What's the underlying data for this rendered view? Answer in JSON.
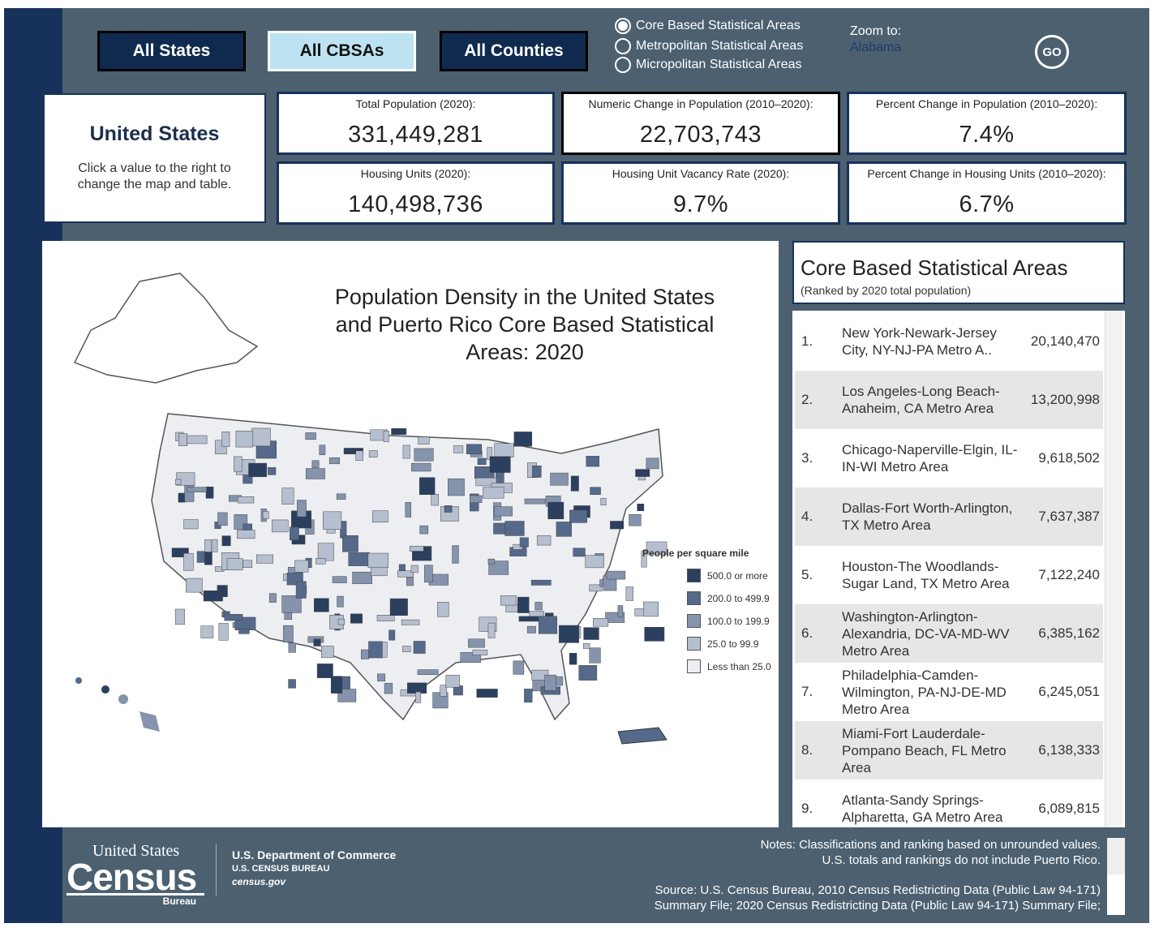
{
  "nav": {
    "buttons": [
      "All States",
      "All CBSAs",
      "All Counties"
    ],
    "active": 1
  },
  "radios": {
    "options": [
      "Core Based Statistical Areas",
      "Metropolitan Statistical Areas",
      "Micropolitan Statistical Areas"
    ],
    "selected": 0
  },
  "zoom": {
    "label": "Zoom to:",
    "value": "Alabama",
    "go": "GO"
  },
  "summary": {
    "title": "United States",
    "hint": "Click a value to the right to change the map and table."
  },
  "stats": [
    {
      "label": "Total Population (2020):",
      "value": "331,449,281"
    },
    {
      "label": "Numeric Change in Population (2010–2020):",
      "value": "22,703,743"
    },
    {
      "label": "Percent Change in Population (2010–2020):",
      "value": "7.4%"
    },
    {
      "label": "Housing Units (2020):",
      "value": "140,498,736"
    },
    {
      "label": "Housing Unit Vacancy Rate (2020):",
      "value": "9.7%"
    },
    {
      "label": "Percent Change in Housing Units (2010–2020):",
      "value": "6.7%"
    }
  ],
  "map": {
    "title": "Population Density in the United States and Puerto Rico Core Based Statistical Areas: 2020",
    "legend_title": "People per square mile",
    "legend": [
      {
        "label": "500.0 or more",
        "color": "#2b3f5e"
      },
      {
        "label": "200.0 to 499.9",
        "color": "#55698a"
      },
      {
        "label": "100.0 to 199.9",
        "color": "#8593ad"
      },
      {
        "label": "25.0 to 99.9",
        "color": "#b6bfcf"
      },
      {
        "label": "Less than 25.0",
        "color": "#eceef2"
      }
    ]
  },
  "table": {
    "title": "Core Based Statistical Areas",
    "subtitle": "(Ranked by 2020 total population)",
    "rows": [
      {
        "rank": "1.",
        "name": "New York-Newark-Jersey City, NY-NJ-PA Metro A..",
        "value": "20,140,470"
      },
      {
        "rank": "2.",
        "name": "Los Angeles-Long Beach-Anaheim, CA Metro Area",
        "value": "13,200,998"
      },
      {
        "rank": "3.",
        "name": "Chicago-Naperville-Elgin, IL-IN-WI Metro Area",
        "value": "9,618,502"
      },
      {
        "rank": "4.",
        "name": "Dallas-Fort Worth-Arlington, TX Metro Area",
        "value": "7,637,387"
      },
      {
        "rank": "5.",
        "name": "Houston-The Woodlands-Sugar Land, TX Metro Area",
        "value": "7,122,240"
      },
      {
        "rank": "6.",
        "name": "Washington-Arlington-Alexandria, DC-VA-MD-WV Metro Area",
        "value": "6,385,162"
      },
      {
        "rank": "7.",
        "name": "Philadelphia-Camden-Wilmington, PA-NJ-DE-MD Metro Area",
        "value": "6,245,051"
      },
      {
        "rank": "8.",
        "name": "Miami-Fort Lauderdale-Pompano Beach, FL Metro Area",
        "value": "6,138,333"
      },
      {
        "rank": "9.",
        "name": "Atlanta-Sandy Springs-Alpharetta, GA Metro Area",
        "value": "6,089,815"
      }
    ]
  },
  "footer": {
    "logo": "United States Census Bureau",
    "dept": "U.S. Department of Commerce",
    "bureau": "U.S. CENSUS BUREAU",
    "site": "census.gov",
    "notes": [
      "Notes: Classifications and ranking based on unrounded values.",
      "U.S. totals and rankings do not include Puerto Rico."
    ],
    "source": [
      "Source: U.S. Census Bureau, 2010 Census Redistricting Data (Public Law 94-171)",
      "Summary File; 2020 Census Redistricting Data (Public Law 94-171) Summary File;"
    ]
  }
}
